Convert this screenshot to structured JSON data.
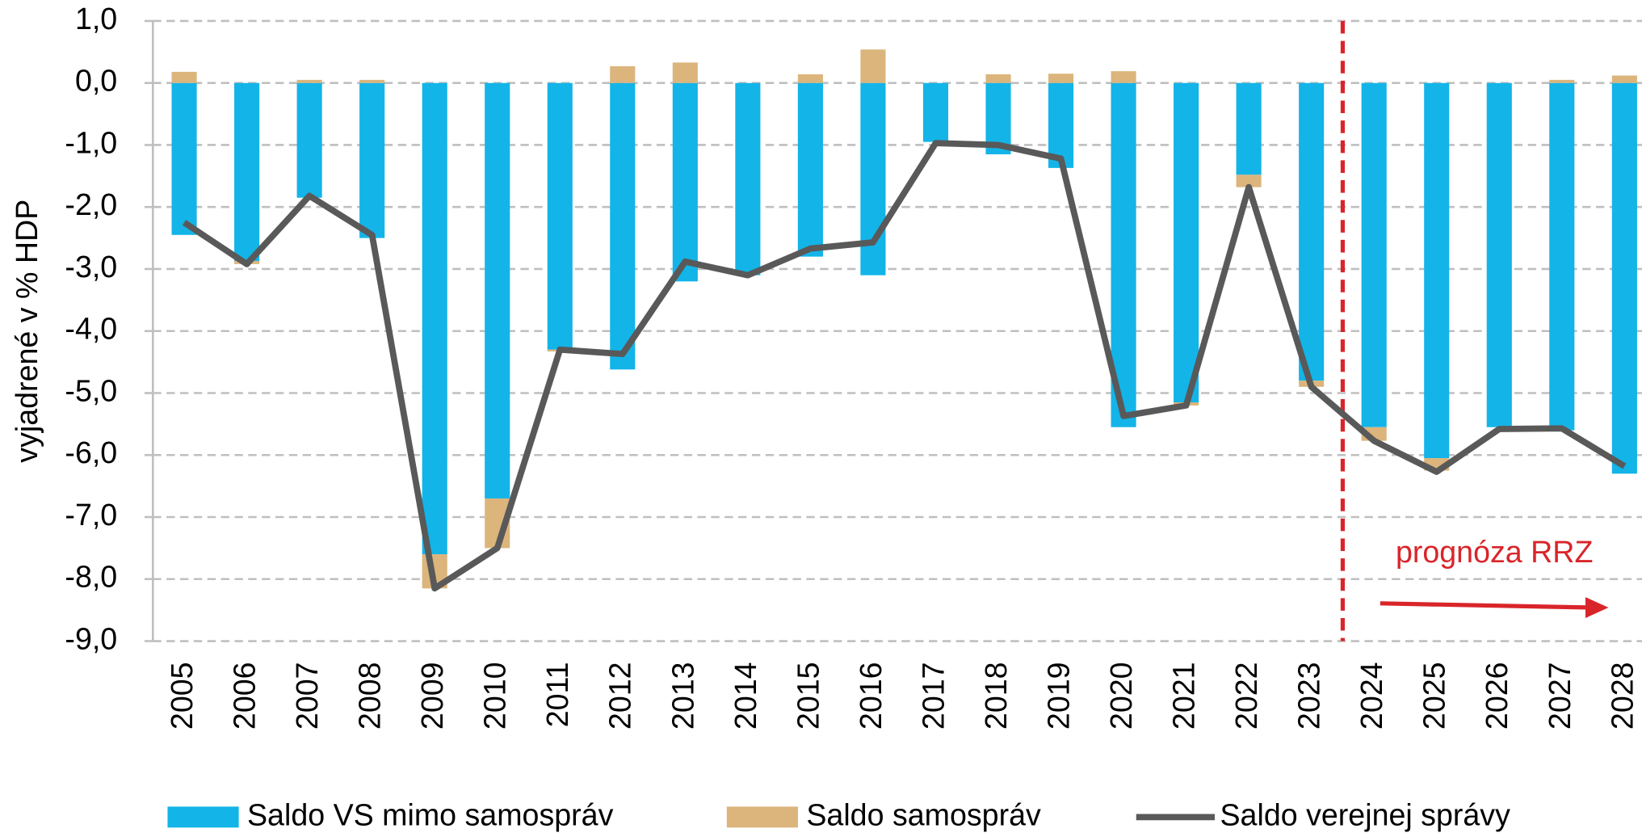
{
  "chart_data": {
    "type": "bar",
    "y_label": "vyjadrené v % HDP",
    "annotation": "prognóza RRZ",
    "categories": [
      "2005",
      "2006",
      "2007",
      "2008",
      "2009",
      "2010",
      "2011",
      "2012",
      "2013",
      "2014",
      "2015",
      "2016",
      "2017",
      "2018",
      "2019",
      "2020",
      "2021",
      "2022",
      "2023",
      "2024",
      "2025",
      "2026",
      "2027",
      "2028"
    ],
    "series": [
      {
        "name": "Saldo VS mimo samospráv",
        "color": "#13b4e8",
        "kind": "bar",
        "values": [
          -2.45,
          -2.87,
          -1.85,
          -2.5,
          -7.6,
          -6.7,
          -4.3,
          -4.62,
          -3.2,
          -3.1,
          -2.8,
          -3.1,
          -0.95,
          -1.15,
          -1.37,
          -5.55,
          -5.15,
          -1.48,
          -4.8,
          -5.55,
          -6.05,
          -5.55,
          -5.6,
          -6.3
        ]
      },
      {
        "name": "Saldo samospráv",
        "color": "#dbb57c",
        "kind": "bar",
        "values": [
          0.18,
          -0.05,
          0.05,
          0.05,
          -0.55,
          -0.8,
          -0.03,
          0.27,
          0.33,
          0,
          0.14,
          0.54,
          0,
          0.14,
          0.15,
          0.19,
          -0.05,
          -0.2,
          -0.1,
          -0.22,
          -0.2,
          0,
          0.05,
          0.12
        ]
      },
      {
        "name": "Saldo verejnej správy",
        "color": "#595959",
        "kind": "line",
        "values": [
          -2.25,
          -2.92,
          -1.82,
          -2.45,
          -8.15,
          -7.5,
          -4.3,
          -4.37,
          -2.88,
          -3.1,
          -2.67,
          -2.57,
          -0.97,
          -1.0,
          -1.22,
          -5.37,
          -5.2,
          -1.68,
          -4.9,
          -5.77,
          -6.27,
          -5.58,
          -5.57,
          -6.18
        ]
      }
    ],
    "ylim": [
      -9,
      1
    ],
    "yticks": [
      {
        "value": 1,
        "label": "1,0"
      },
      {
        "value": 0,
        "label": "0,0"
      },
      {
        "value": -1,
        "label": "-1,0"
      },
      {
        "value": -2,
        "label": "-2,0"
      },
      {
        "value": -3,
        "label": "-3,0"
      },
      {
        "value": -4,
        "label": "-4,0"
      },
      {
        "value": -5,
        "label": "-5,0"
      },
      {
        "value": -6,
        "label": "-6,0"
      },
      {
        "value": -7,
        "label": "-7,0"
      },
      {
        "value": -8,
        "label": "-8,0"
      },
      {
        "value": -9,
        "label": "-9,0"
      }
    ],
    "grid": true
  }
}
